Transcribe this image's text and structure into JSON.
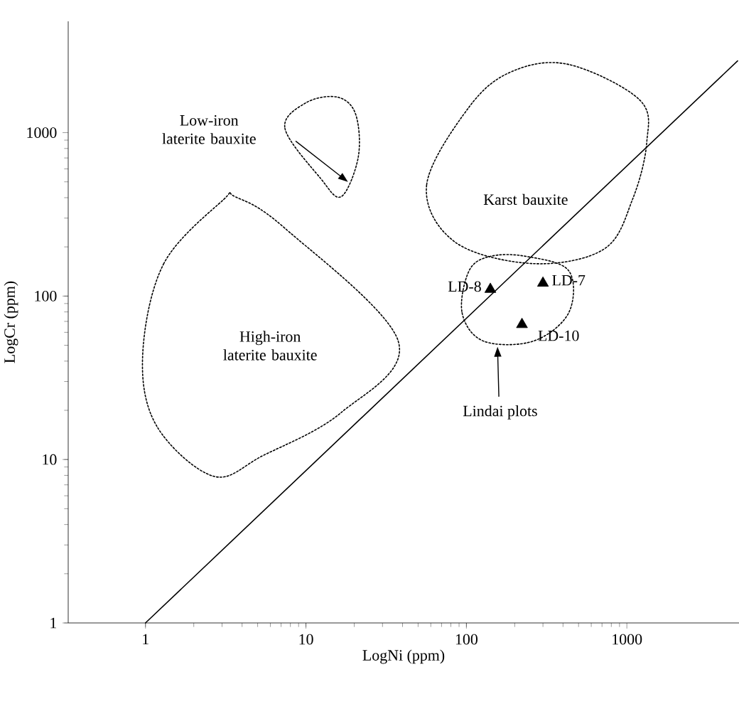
{
  "chart_data": {
    "type": "scatter",
    "log": "xy",
    "xlabel": "LogNi (ppm)",
    "ylabel": "LogCr (ppm)",
    "xlim": [
      0.33,
      5000
    ],
    "ylim": [
      1,
      4800
    ],
    "xticks": [
      1,
      10,
      100,
      1000
    ],
    "yticks": [
      1,
      10,
      100,
      1000
    ],
    "annotations": [
      "Low-iron laterite bauxite",
      "Karst bauxite",
      "High-iron laterite bauxite",
      "Lindai plots",
      {
        "text": "LD-8",
        "x": 141,
        "y": 110
      },
      {
        "text": "LD-7",
        "x": 300,
        "y": 120
      },
      {
        "text": "LD-10",
        "x": 222,
        "y": 67
      }
    ],
    "series": [
      {
        "type": "line",
        "line_style": "solid",
        "color": "#000000",
        "x": [
          1,
          4900
        ],
        "values": [
          1,
          2750
        ]
      },
      {
        "marker": "triangle",
        "color": "#000000",
        "x": [
          141,
          300,
          222
        ],
        "values": [
          110,
          120,
          67
        ]
      }
    ]
  }
}
